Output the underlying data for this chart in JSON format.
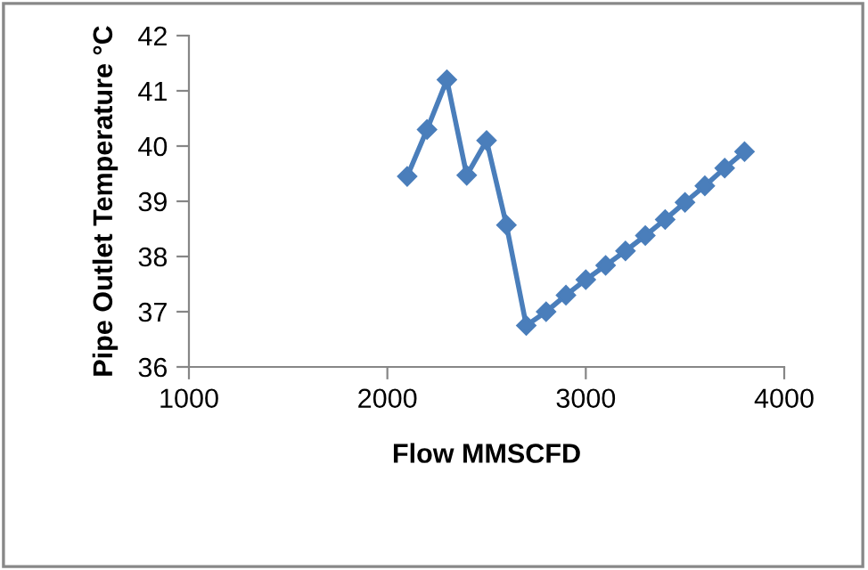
{
  "chart_data": {
    "type": "line",
    "xlabel": "Flow MMSCFD",
    "ylabel": "Pipe Outlet Temperature °C",
    "x": [
      2100,
      2200,
      2300,
      2400,
      2500,
      2600,
      2700,
      2800,
      2900,
      3000,
      3100,
      3200,
      3300,
      3400,
      3500,
      3600,
      3700,
      3800
    ],
    "series": [
      {
        "color": "#4a7ebb",
        "values": [
          39.45,
          40.3,
          41.2,
          39.47,
          40.1,
          38.57,
          36.75,
          37.0,
          37.3,
          37.58,
          37.84,
          38.1,
          38.38,
          38.67,
          38.98,
          39.28,
          39.6,
          39.9
        ]
      }
    ],
    "xlim": [
      1000,
      4000
    ],
    "xticks": [
      1000,
      2000,
      3000,
      4000
    ],
    "ylim": [
      36,
      42
    ],
    "yticks": [
      36,
      37,
      38,
      39,
      40,
      41,
      42
    ],
    "marker": "diamond",
    "line_style": "solid",
    "grid": false,
    "legend": false
  }
}
